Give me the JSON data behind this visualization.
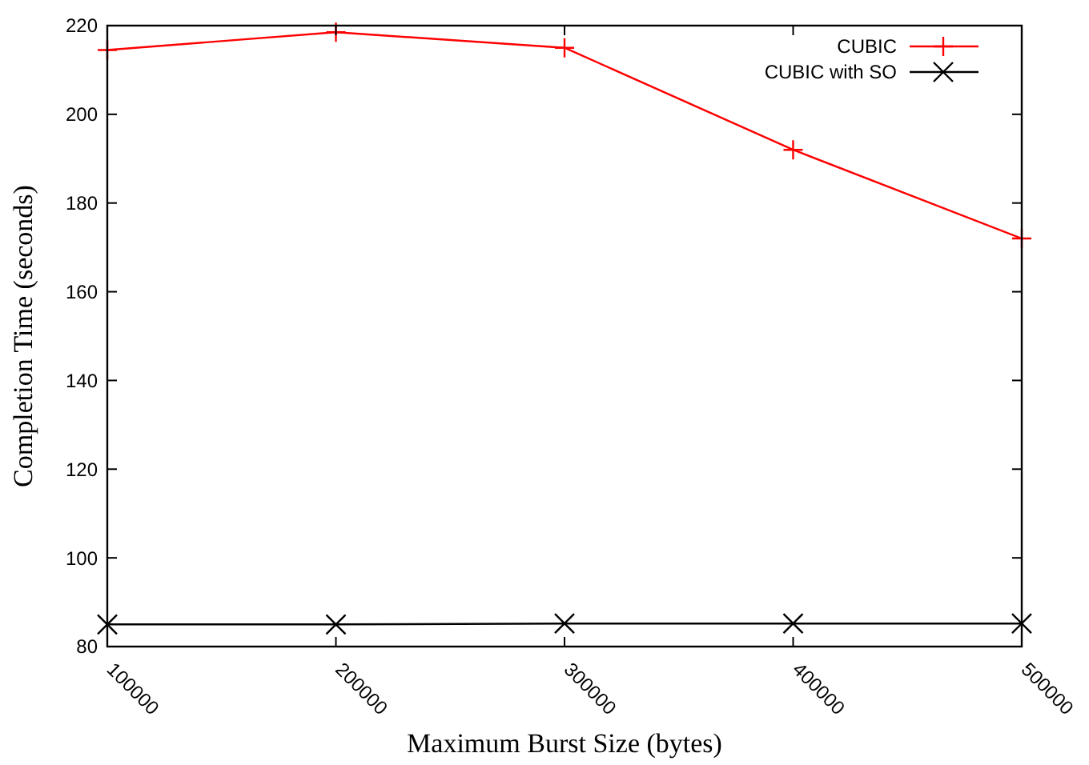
{
  "chart_data": {
    "type": "line",
    "xlabel": "Maximum Burst Size (bytes)",
    "ylabel": "Completion Time (seconds)",
    "x": [
      100000,
      200000,
      300000,
      400000,
      500000
    ],
    "series": [
      {
        "name": "CUBIC",
        "color": "#ff0000",
        "marker": "cross",
        "values": [
          214.5,
          218.5,
          215,
          192,
          172
        ]
      },
      {
        "name": "CUBIC with SO",
        "color": "#000000",
        "marker": "x",
        "values": [
          85,
          85,
          85.2,
          85.2,
          85.2
        ]
      }
    ],
    "xlim": [
      100000,
      500000
    ],
    "xticks": [
      100000,
      200000,
      300000,
      400000,
      500000
    ],
    "ylim": [
      80,
      220
    ],
    "yticks": [
      80,
      100,
      120,
      140,
      160,
      180,
      200,
      220
    ],
    "grid": false,
    "legend": "top right",
    "line_style": "solid"
  }
}
